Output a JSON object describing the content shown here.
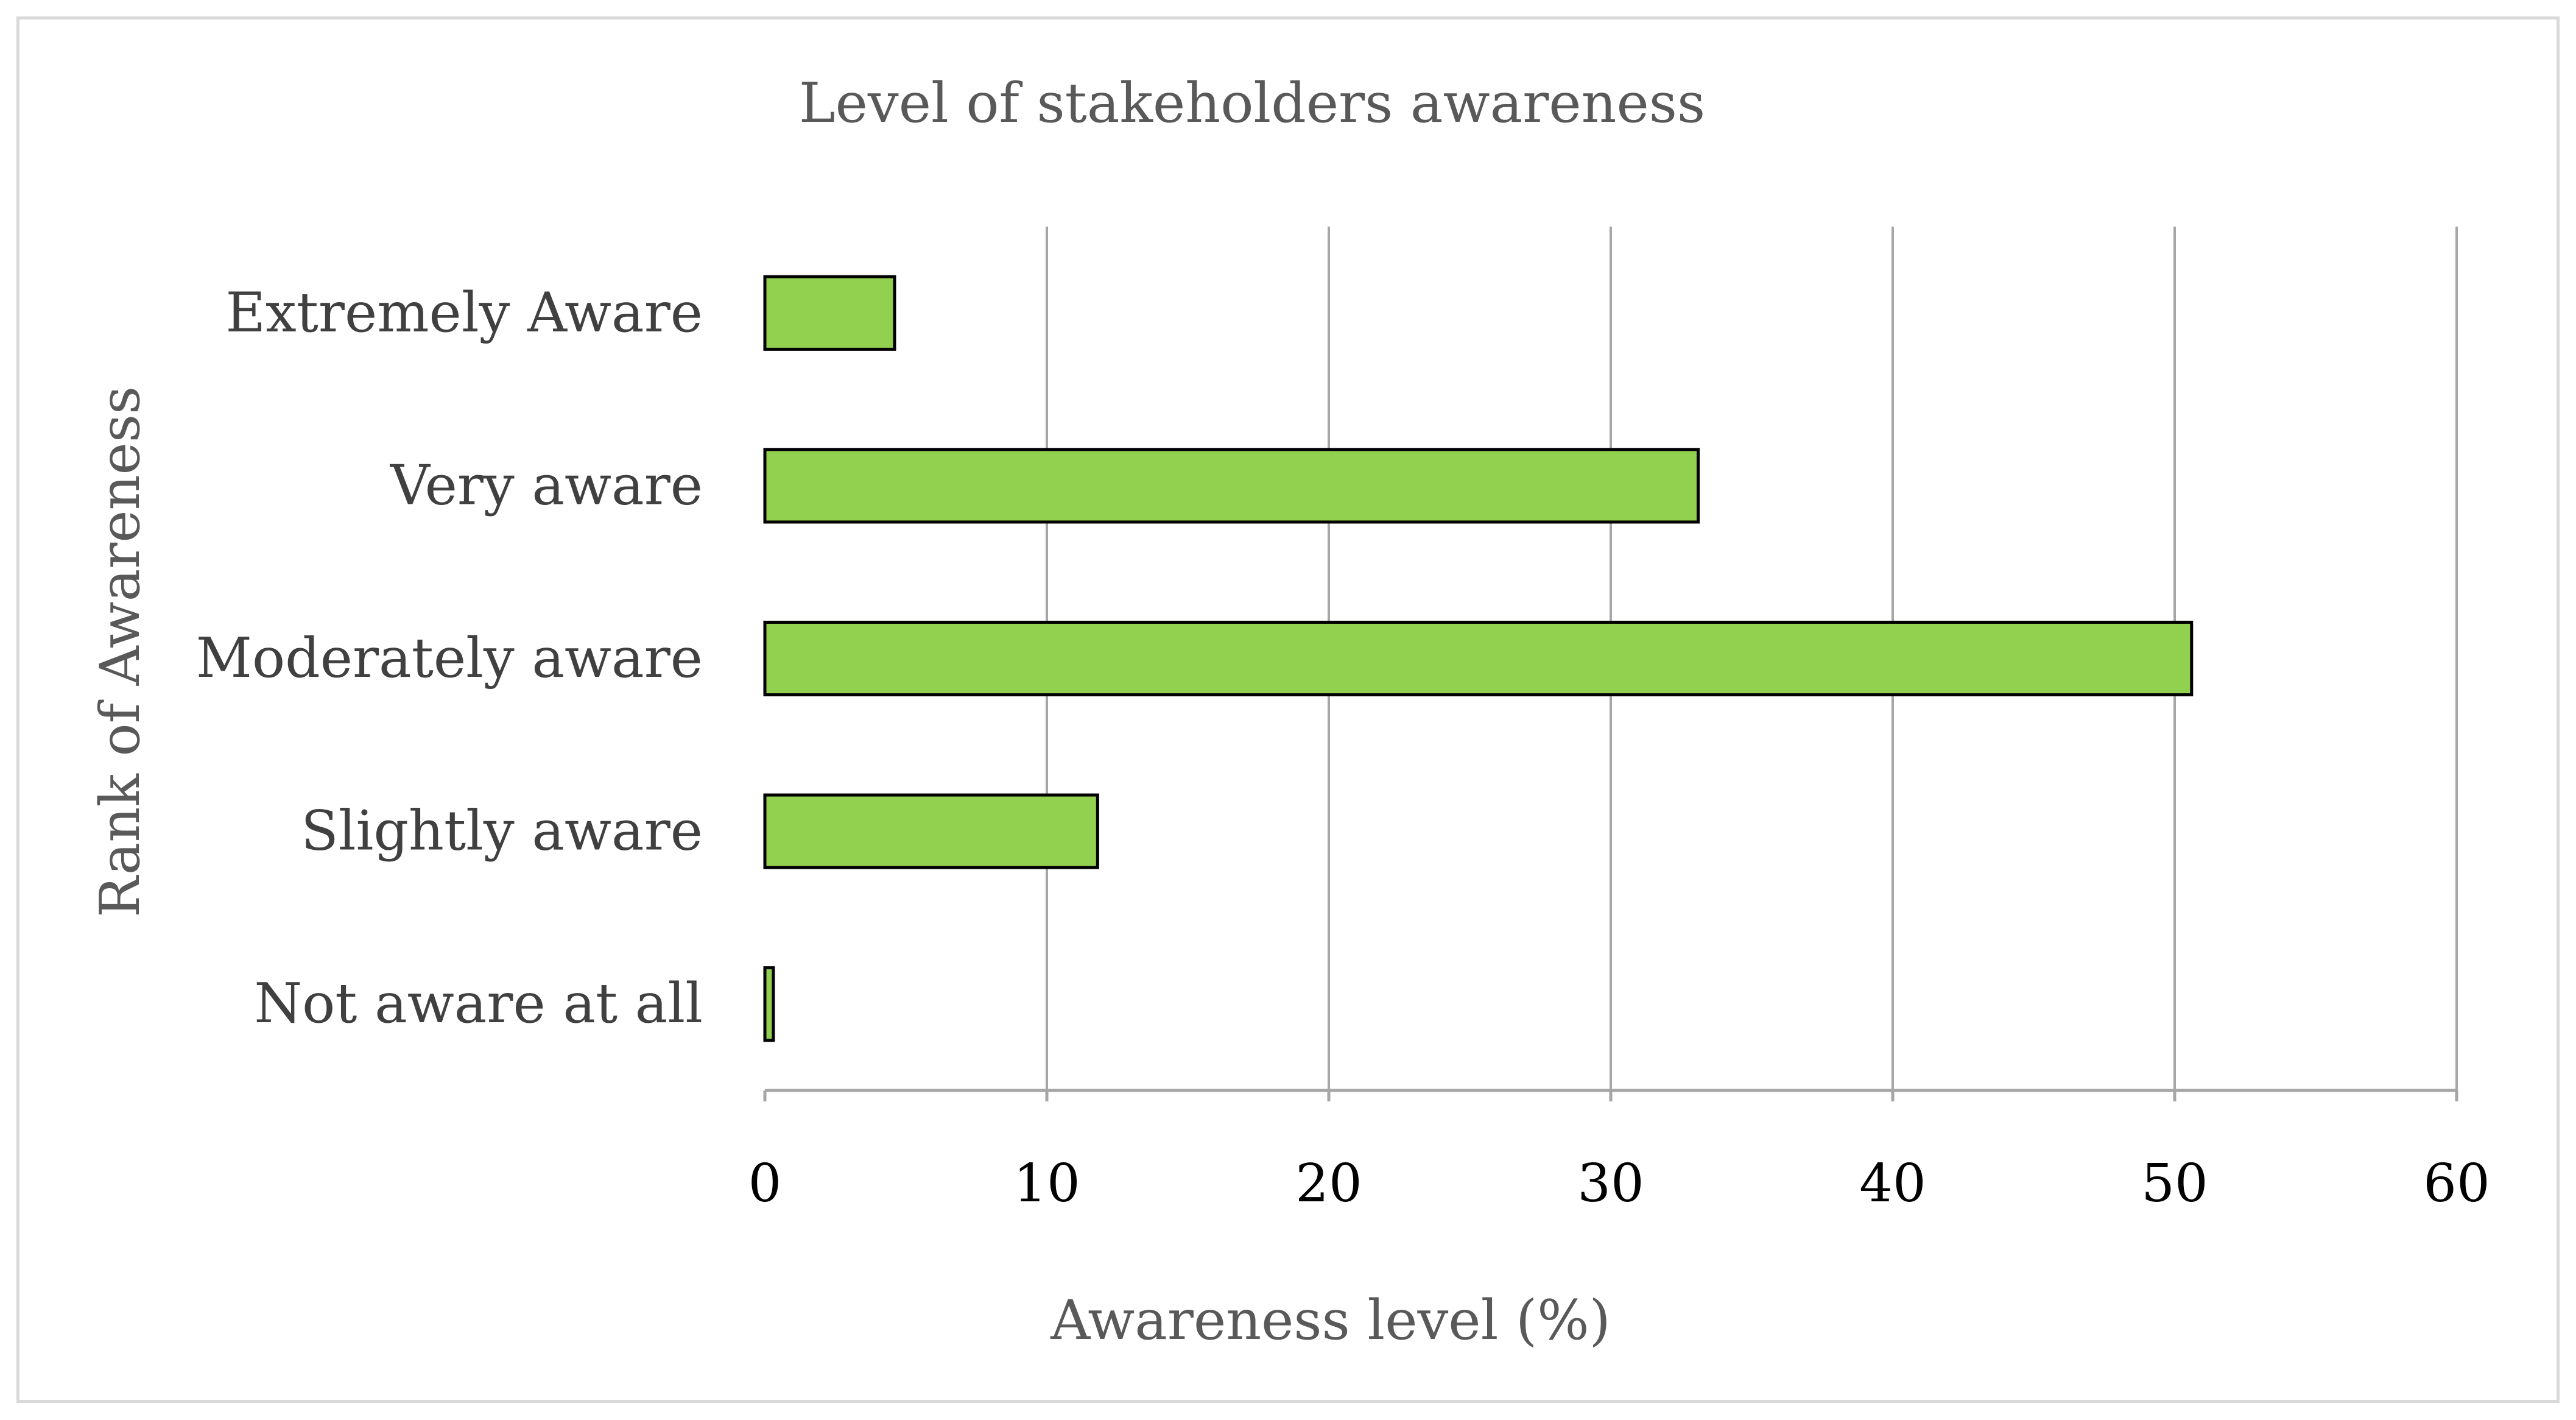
{
  "chart_data": {
    "type": "bar",
    "orientation": "horizontal",
    "title": "Level of stakeholders awareness",
    "xlabel": "Awareness level (%)",
    "ylabel": "Rank of Awareness",
    "categories": [
      "Extremely Aware",
      "Very aware",
      "Moderately aware",
      "Slightly aware",
      "Not aware at all"
    ],
    "values": [
      4.6,
      33.1,
      50.6,
      11.8,
      0.3
    ],
    "xlim": [
      0,
      60
    ],
    "xticks": [
      "0",
      "10",
      "20",
      "30",
      "40",
      "50",
      "60"
    ],
    "grid": "vertical",
    "bar_color": "#92d050",
    "legend": "none"
  }
}
